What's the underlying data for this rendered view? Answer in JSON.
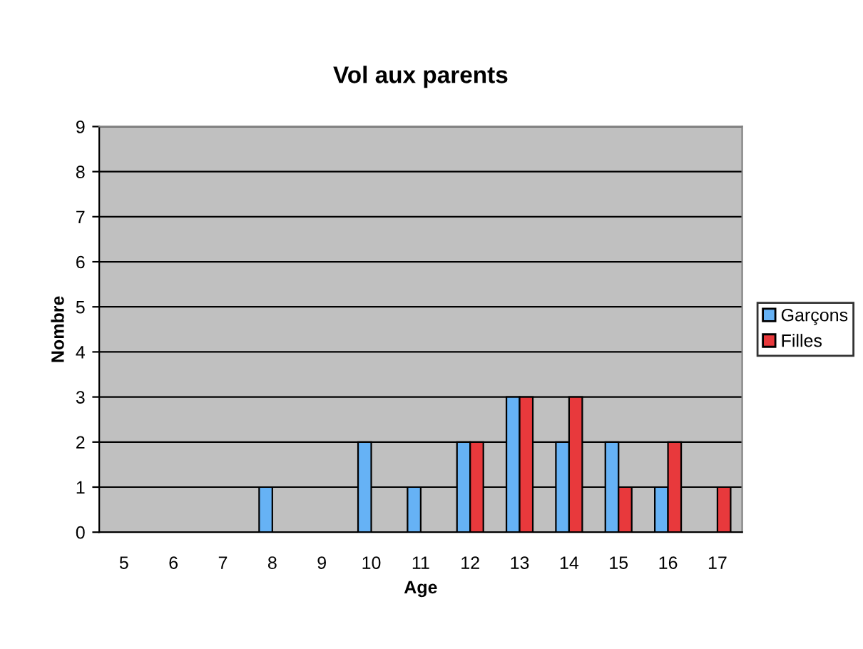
{
  "chart_data": {
    "type": "bar",
    "title": "Vol aux parents",
    "xlabel": "Age",
    "ylabel": "Nombre",
    "categories": [
      "5",
      "6",
      "7",
      "8",
      "9",
      "10",
      "11",
      "12",
      "13",
      "14",
      "15",
      "16",
      "17"
    ],
    "series": [
      {
        "name": "Garçons",
        "color": "#66b2f5",
        "values": [
          0,
          0,
          0,
          1,
          0,
          2,
          1,
          2,
          3,
          2,
          2,
          1,
          0
        ]
      },
      {
        "name": "Filles",
        "color": "#e8393c",
        "values": [
          0,
          0,
          0,
          0,
          0,
          0,
          0,
          2,
          3,
          3,
          1,
          2,
          1
        ]
      }
    ],
    "ylim": [
      0,
      9
    ],
    "yticks": [
      0,
      1,
      2,
      3,
      4,
      5,
      6,
      7,
      8,
      9
    ],
    "grid": "y",
    "legend": "right"
  }
}
